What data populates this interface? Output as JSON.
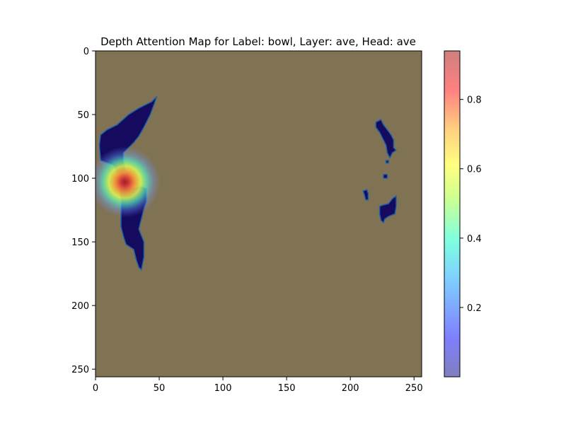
{
  "chart_data": {
    "type": "heatmap",
    "title": "Depth Attention Map for Label: bowl, Layer: ave, Head: ave",
    "x_ticks": [
      0,
      50,
      100,
      150,
      200,
      250
    ],
    "y_ticks": [
      0,
      50,
      100,
      150,
      200,
      250
    ],
    "xlim": [
      0,
      256
    ],
    "ylim": [
      256,
      0
    ],
    "background_color": "#7f7354",
    "mask_color": "#140a5e",
    "mask_regions": [
      {
        "name": "left-upper-region",
        "polygon": [
          [
            48,
            36
          ],
          [
            44,
            40
          ],
          [
            34,
            45
          ],
          [
            26,
            50
          ],
          [
            17,
            58
          ],
          [
            9,
            62
          ],
          [
            4,
            66
          ],
          [
            3,
            74
          ],
          [
            4,
            86
          ],
          [
            14,
            90
          ],
          [
            17,
            96
          ],
          [
            24,
            94
          ],
          [
            22,
            86
          ],
          [
            22,
            80
          ],
          [
            26,
            76
          ],
          [
            30,
            72
          ],
          [
            34,
            67
          ],
          [
            38,
            60
          ],
          [
            43,
            50
          ],
          [
            46,
            42
          ]
        ]
      },
      {
        "name": "left-lower-region",
        "polygon": [
          [
            18,
            108
          ],
          [
            20,
            116
          ],
          [
            20,
            126
          ],
          [
            20,
            138
          ],
          [
            22,
            146
          ],
          [
            24,
            152
          ],
          [
            30,
            156
          ],
          [
            32,
            164
          ],
          [
            34,
            170
          ],
          [
            36,
            172
          ],
          [
            38,
            162
          ],
          [
            38,
            150
          ],
          [
            34,
            140
          ],
          [
            36,
            132
          ],
          [
            38,
            124
          ],
          [
            40,
            118
          ],
          [
            40,
            108
          ],
          [
            36,
            106
          ],
          [
            28,
            108
          ]
        ]
      },
      {
        "name": "right-upper-region",
        "polygon": [
          [
            220,
            56
          ],
          [
            224,
            54
          ],
          [
            226,
            58
          ],
          [
            229,
            62
          ],
          [
            232,
            66
          ],
          [
            234,
            70
          ],
          [
            234,
            76
          ],
          [
            236,
            78
          ],
          [
            233,
            80
          ],
          [
            231,
            84
          ],
          [
            229,
            80
          ],
          [
            228,
            74
          ],
          [
            226,
            70
          ],
          [
            223,
            64
          ],
          [
            220,
            60
          ]
        ]
      },
      {
        "name": "right-dot-a",
        "polygon": [
          [
            228,
            86
          ],
          [
            230,
            86
          ],
          [
            230,
            88
          ],
          [
            228,
            88
          ]
        ]
      },
      {
        "name": "right-dot-b",
        "polygon": [
          [
            226,
            97
          ],
          [
            229,
            97
          ],
          [
            229,
            100
          ],
          [
            226,
            100
          ]
        ]
      },
      {
        "name": "right-small-region",
        "polygon": [
          [
            210,
            110
          ],
          [
            213,
            109
          ],
          [
            214,
            112
          ],
          [
            214,
            117
          ],
          [
            212,
            117
          ],
          [
            211,
            113
          ]
        ]
      },
      {
        "name": "right-lower-region",
        "polygon": [
          [
            223,
            122
          ],
          [
            226,
            121
          ],
          [
            230,
            120
          ],
          [
            233,
            116
          ],
          [
            236,
            114
          ],
          [
            236,
            122
          ],
          [
            235,
            128
          ],
          [
            230,
            130
          ],
          [
            227,
            132
          ],
          [
            226,
            135
          ],
          [
            224,
            133
          ],
          [
            223,
            128
          ]
        ]
      }
    ],
    "hotspot": {
      "x": 23,
      "y": 103,
      "peak": 0.93,
      "radius": 14
    },
    "colorbar": {
      "ticks": [
        0.2,
        0.4,
        0.6,
        0.8
      ],
      "range": [
        0.0,
        0.94
      ],
      "colormap": "jet",
      "alpha": 0.5
    }
  }
}
